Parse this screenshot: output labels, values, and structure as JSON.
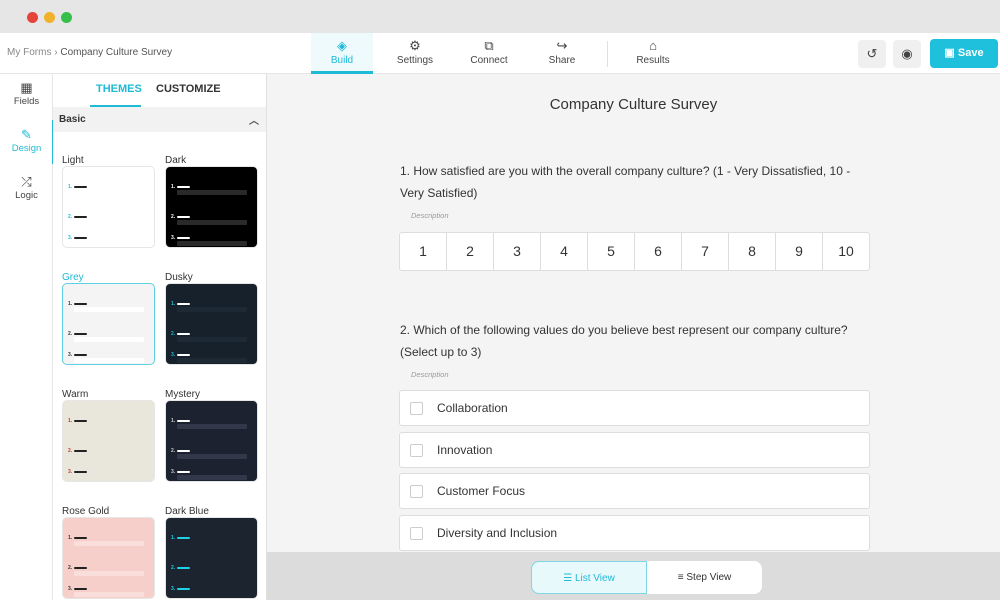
{
  "window": {
    "controls": {
      "close": "#e5443a",
      "minimize": "#f1b12a",
      "maximize": "#34c04a"
    }
  },
  "breadcrumb": {
    "parent": "My Forms",
    "separator": "›",
    "current": "Company Culture Survey"
  },
  "nav": [
    {
      "label": "Build",
      "icon": "layers-icon"
    },
    {
      "label": "Settings",
      "icon": "gear-icon"
    },
    {
      "label": "Connect",
      "icon": "puzzle-icon"
    },
    {
      "label": "Share",
      "icon": "share-arrow-icon"
    },
    {
      "label": "Results",
      "icon": "inbox-icon"
    }
  ],
  "actions": {
    "save_label": "Save",
    "history_icon": "history-icon",
    "preview_icon": "eye-icon"
  },
  "rail": [
    {
      "label": "Fields",
      "icon": "grid-icon"
    },
    {
      "label": "Design",
      "icon": "brush-icon"
    },
    {
      "label": "Logic",
      "icon": "shuffle-icon"
    }
  ],
  "panel": {
    "tabs": [
      "THEMES",
      "CUSTOMIZE"
    ],
    "section": "Basic",
    "themes": [
      {
        "name": "Light",
        "bg": "#ffffff",
        "fg": "#222222",
        "num": "#1fbad6",
        "bar": "#ffffff"
      },
      {
        "name": "Dark",
        "bg": "#000000",
        "fg": "#ffffff",
        "num": "#ffffff",
        "bar": "#2a2a2a"
      },
      {
        "name": "Grey",
        "bg": "#f4f4f4",
        "fg": "#222222",
        "num": "#333333",
        "bar": "#ffffff"
      },
      {
        "name": "Dusky",
        "bg": "#17212b",
        "fg": "#ffffff",
        "num": "#1fbad6",
        "bar": "#1d2a35"
      },
      {
        "name": "Warm",
        "bg": "#e9e6dc",
        "fg": "#222222",
        "num": "#c0392b",
        "bar": "#e9e6dc"
      },
      {
        "name": "Mystery",
        "bg": "#1d2230",
        "fg": "#ffffff",
        "num": "#cccccc",
        "bar": "#323849"
      },
      {
        "name": "Rose Gold",
        "bg": "#f6cfcb",
        "fg": "#222222",
        "num": "#333333",
        "bar": "#f9dedb"
      },
      {
        "name": "Dark Blue",
        "bg": "#1c2430",
        "fg": "#1fd0e6",
        "num": "#1fd0e6",
        "bar": "#1c2430"
      }
    ],
    "selected": "Grey"
  },
  "form": {
    "title": "Company Culture Survey",
    "q1": {
      "text": "1. How satisfied are you with the overall company culture? (1 - Very Dissatisfied, 10 - Very Satisfied)",
      "description": "Description",
      "scale": [
        "1",
        "2",
        "3",
        "4",
        "5",
        "6",
        "7",
        "8",
        "9",
        "10"
      ]
    },
    "q2": {
      "text": "2. Which of the following values do you believe best represent our company culture? (Select up to 3)",
      "description": "Description",
      "options": [
        "Collaboration",
        "Innovation",
        "Customer Focus",
        "Diversity and Inclusion"
      ]
    }
  },
  "views": {
    "list": "List View",
    "step": "Step View",
    "active": "List View"
  },
  "accent": "#1fbad6"
}
